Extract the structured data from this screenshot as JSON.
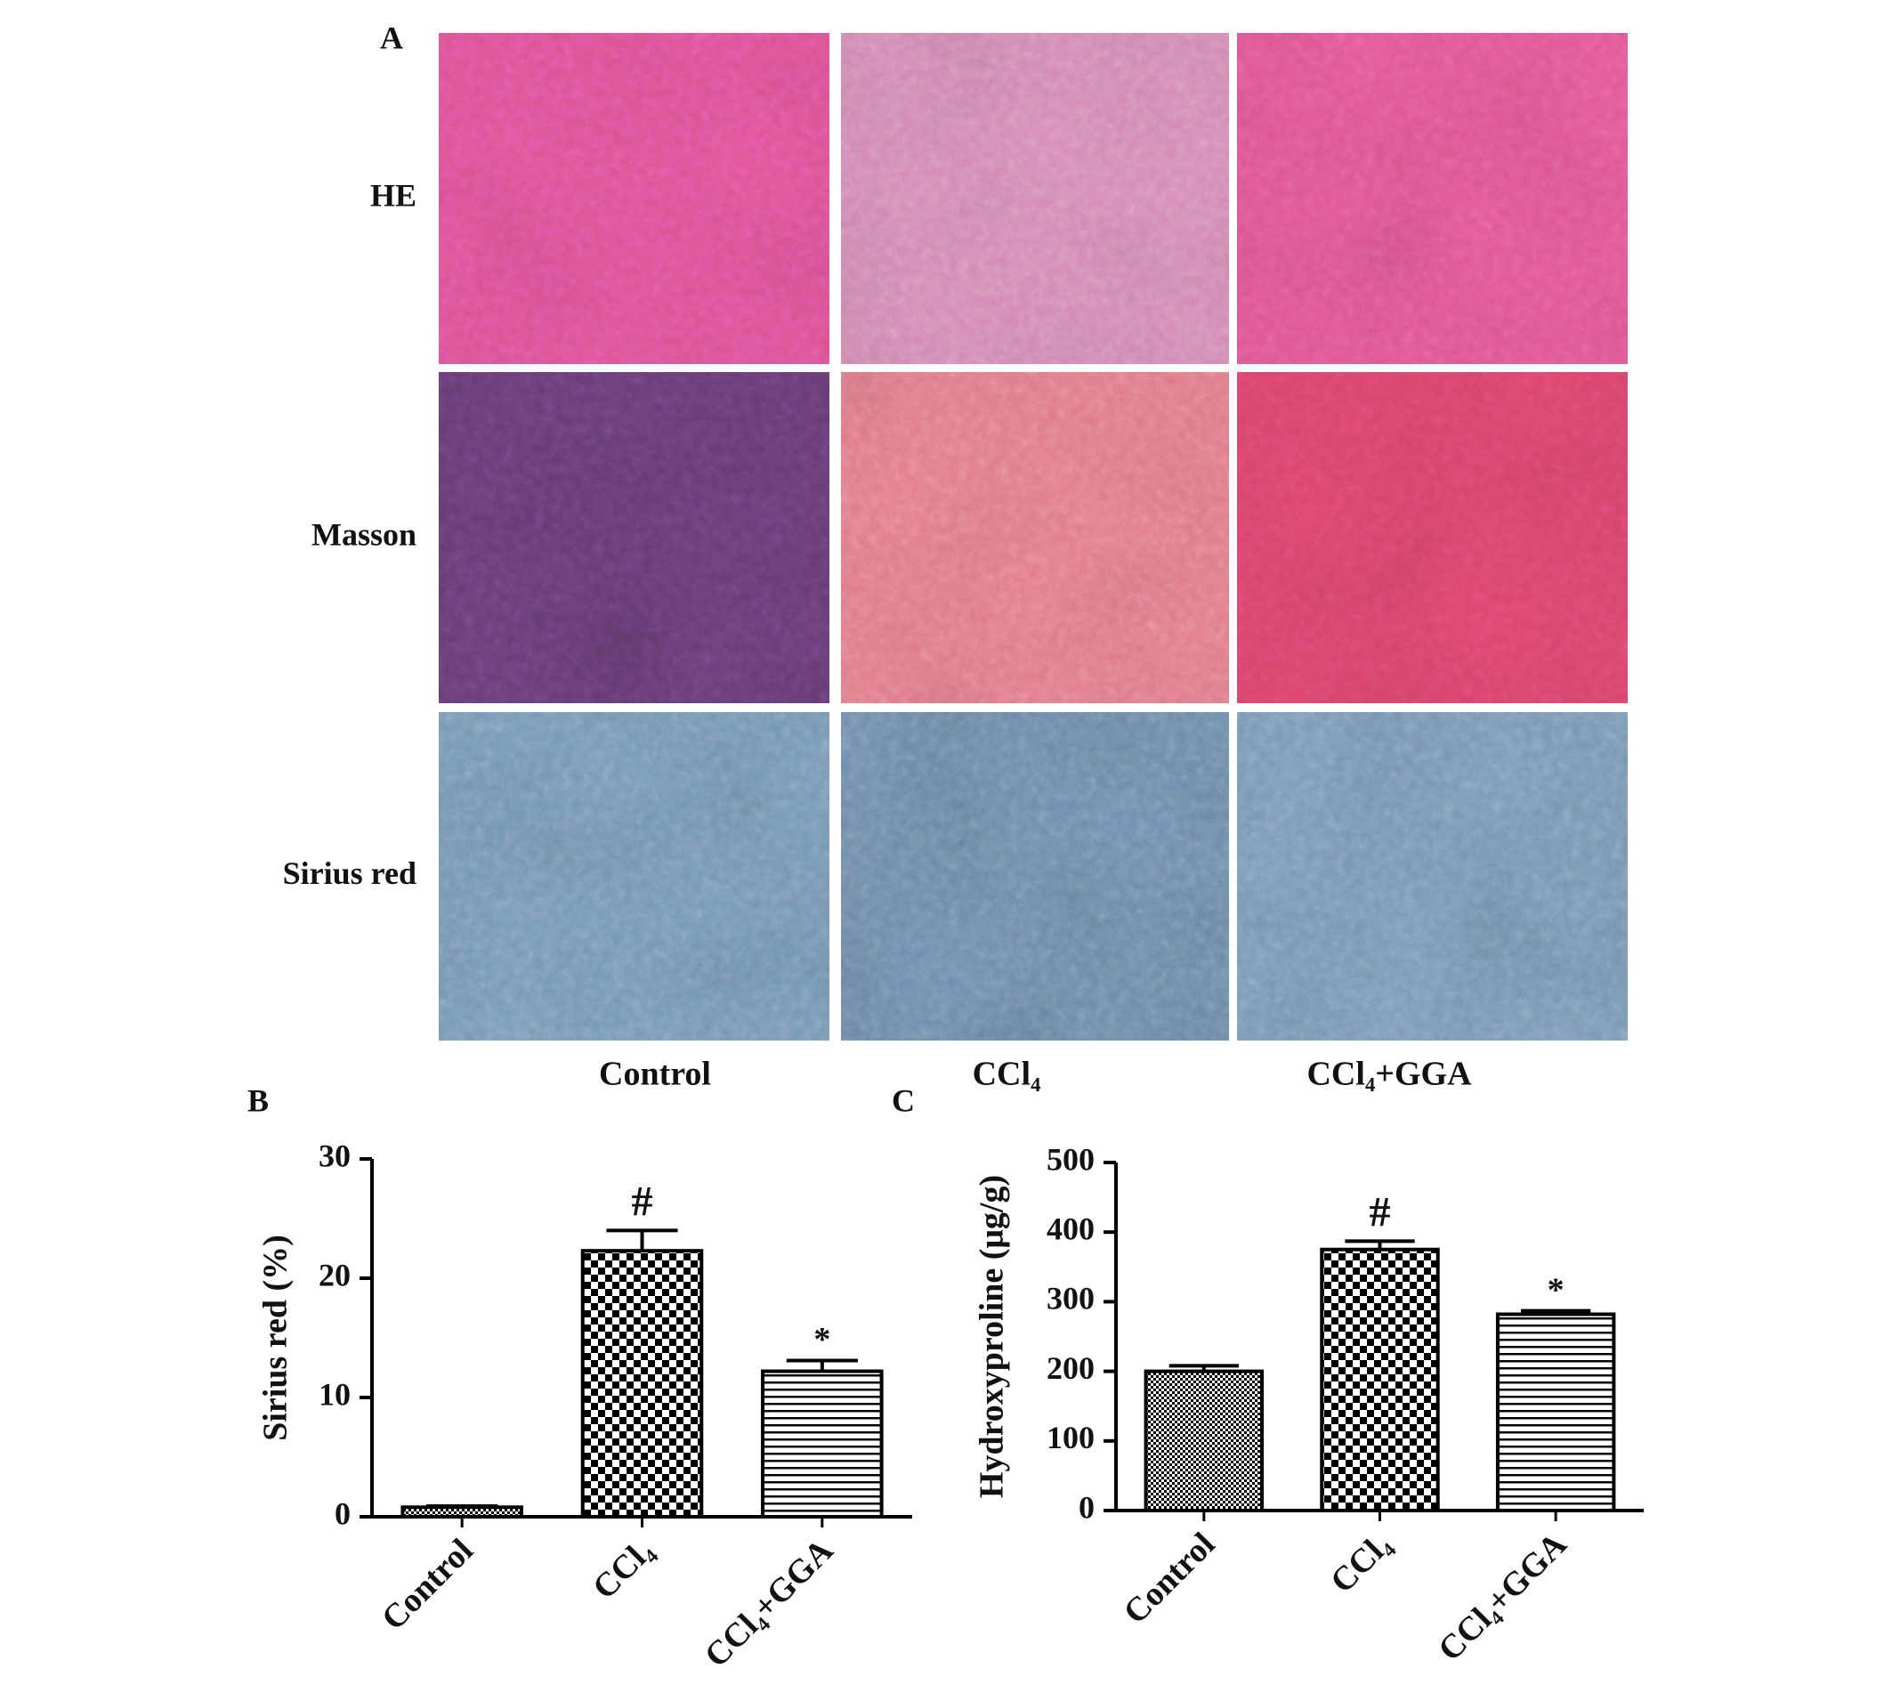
{
  "panel_a": {
    "label": "A",
    "rows": [
      "HE",
      "Masson",
      "Sirius red"
    ],
    "columns": [
      "Control",
      "CCl₄",
      "CCl₄+GGA"
    ]
  },
  "chart_data": [
    {
      "type": "bar",
      "label": "B",
      "y_label": "Sirius red (%)",
      "categories": [
        "Control",
        "CCl₄",
        "CCl₄+GGA"
      ],
      "values": [
        0.8,
        22.3,
        12.2
      ],
      "errors": [
        0.1,
        1.7,
        0.9
      ],
      "annotations": [
        null,
        "#",
        "*"
      ],
      "ylim": [
        0,
        30
      ],
      "yticks": [
        0,
        10,
        20,
        30
      ],
      "color": "#000000"
    },
    {
      "type": "bar",
      "label": "C",
      "y_label": "Hydroxyproline (μg/g)",
      "categories": [
        "Control",
        "CCl₄",
        "CCl₄+GGA"
      ],
      "values": [
        200,
        375,
        282
      ],
      "errors": [
        8,
        12,
        5
      ],
      "annotations": [
        null,
        "#",
        "*"
      ],
      "ylim": [
        0,
        500
      ],
      "yticks": [
        0,
        100,
        200,
        300,
        400,
        500
      ],
      "color": "#000000"
    }
  ]
}
